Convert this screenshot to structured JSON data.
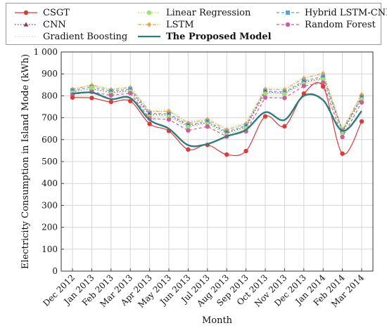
{
  "chart_data": {
    "type": "line",
    "xlabel": "Month",
    "ylabel": "Electricity Consumption in Island Mode (kWh)",
    "ylim": [
      0,
      1000
    ],
    "yticks": [
      "0",
      "100",
      "200",
      "300",
      "400",
      "500",
      "600",
      "700",
      "800",
      "900",
      "1 000"
    ],
    "grid": true,
    "legend_position": "top",
    "categories": [
      "Dec 2012",
      "Jan 2013",
      "Feb 2013",
      "Mar 2013",
      "Apr 2013",
      "May 2013",
      "Jun 2013",
      "Jul 2013",
      "Aug 2013",
      "Sep 2013",
      "Oct 2013",
      "Nov 2013",
      "Dec 2013",
      "Jan 2014",
      "Feb 2014",
      "Mar 2014"
    ],
    "series": [
      {
        "name": "CSGT",
        "color": "#d93a3a",
        "marker": "circle",
        "style": "solid",
        "smooth": true,
        "values": [
          792,
          790,
          772,
          776,
          672,
          640,
          555,
          576,
          532,
          548,
          706,
          661,
          810,
          842,
          536,
          683
        ]
      },
      {
        "name": "Linear Regression",
        "color": "#9ee36a",
        "marker": "circle",
        "style": "dotted",
        "values": [
          815,
          835,
          810,
          820,
          705,
          705,
          657,
          672,
          622,
          652,
          810,
          808,
          855,
          875,
          628,
          784
        ]
      },
      {
        "name": "Hybrid LSTM-CNN",
        "color": "#5aa2d6",
        "marker": "square",
        "style": "dashed",
        "values": [
          825,
          840,
          822,
          830,
          720,
          718,
          668,
          684,
          636,
          664,
          822,
          818,
          868,
          888,
          640,
          795
        ]
      },
      {
        "name": "CNN",
        "color": "#9b2f55",
        "marker": "triangle",
        "style": "dotted",
        "values": [
          820,
          832,
          815,
          824,
          714,
          712,
          662,
          678,
          630,
          658,
          818,
          812,
          862,
          880,
          635,
          790
        ]
      },
      {
        "name": "LSTM",
        "color": "#f0a340",
        "marker": "diamond",
        "style": "dashdot",
        "values": [
          830,
          848,
          828,
          838,
          728,
          730,
          676,
          692,
          645,
          672,
          830,
          828,
          880,
          902,
          645,
          805
        ]
      },
      {
        "name": "Random Forest",
        "color": "#d05aa6",
        "marker": "circle",
        "style": "dashed",
        "values": [
          806,
          818,
          802,
          812,
          696,
          692,
          642,
          660,
          614,
          638,
          792,
          790,
          845,
          860,
          612,
          770
        ]
      },
      {
        "name": "Gradient Boosting",
        "color": "#bfe8b0",
        "marker": "none",
        "style": "dotted",
        "values": [
          834,
          852,
          832,
          842,
          732,
          736,
          682,
          698,
          650,
          678,
          836,
          834,
          886,
          908,
          650,
          812
        ]
      },
      {
        "name": "The Proposed Model",
        "color": "#2e7d7a",
        "marker": "none",
        "style": "solid",
        "smooth": true,
        "bold": true,
        "values": [
          810,
          815,
          785,
          790,
          690,
          650,
          575,
          580,
          615,
          645,
          725,
          690,
          800,
          780,
          640,
          730
        ]
      }
    ]
  }
}
